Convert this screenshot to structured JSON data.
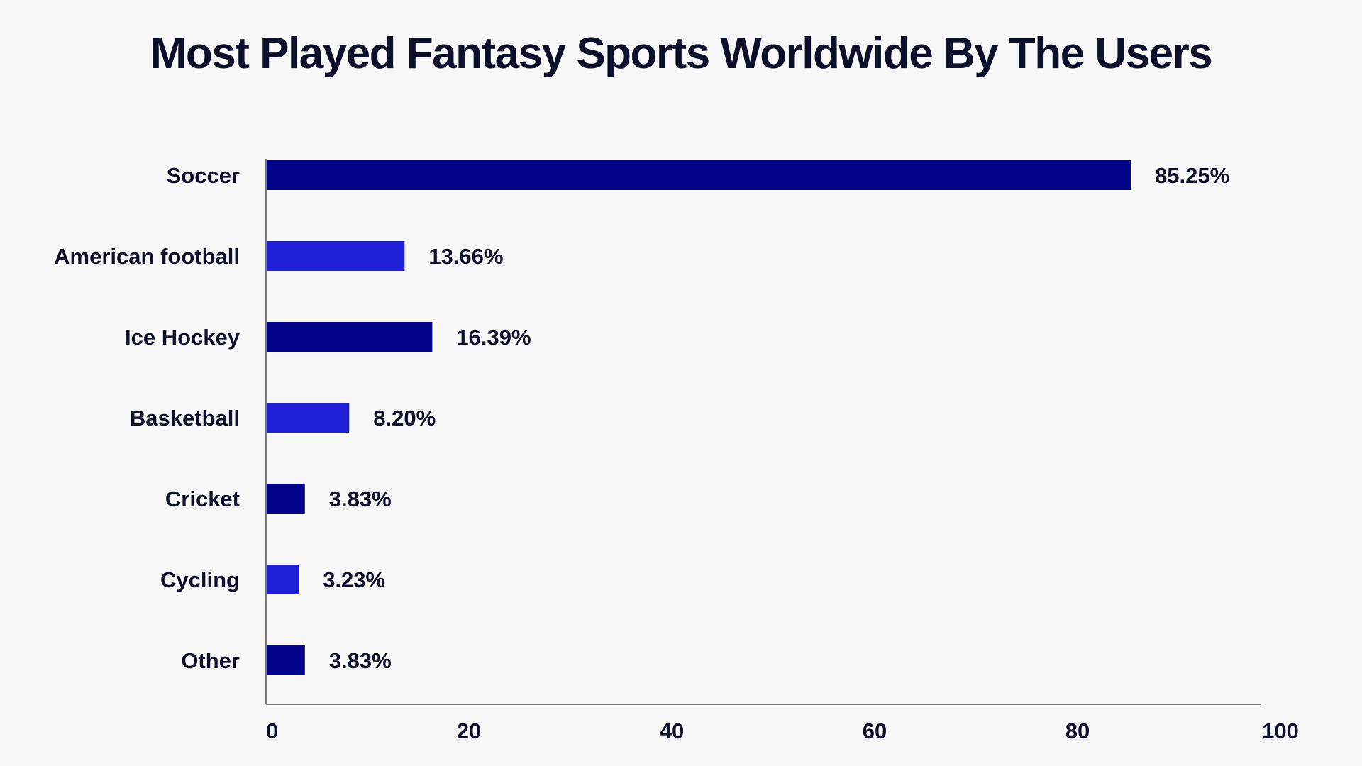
{
  "chart_data": {
    "type": "bar",
    "orientation": "horizontal",
    "title": "Most Played Fantasy Sports Worldwide By The Users",
    "xlabel": "",
    "ylabel": "",
    "categories": [
      "Soccer",
      "American football",
      "Ice Hockey",
      "Basketball",
      "Cricket",
      "Cycling",
      "Other"
    ],
    "values": [
      85.25,
      13.66,
      16.39,
      8.2,
      3.83,
      3.23,
      3.83
    ],
    "value_labels": [
      "85.25%",
      "13.66%",
      "16.39%",
      "8.20%",
      "3.83%",
      "3.23%",
      "3.83%"
    ],
    "bar_colors": [
      "#03038a",
      "#1f1fd6",
      "#03038a",
      "#1f1fd6",
      "#03038a",
      "#1f1fd6",
      "#03038a"
    ],
    "x_ticks": [
      "0",
      "20",
      "40",
      "60",
      "80",
      "100"
    ],
    "xlim": [
      0,
      100
    ],
    "grid": false,
    "legend": "none"
  },
  "colors": {
    "background": "#f7f7f8",
    "text": "#0d0f2b",
    "axis": "#7a7a7a"
  }
}
